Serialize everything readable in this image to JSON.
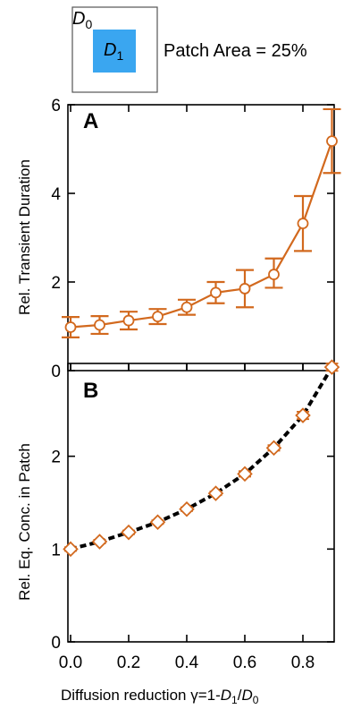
{
  "inset": {
    "outer_label_main": "D",
    "outer_label_sub": "0",
    "inner_label_main": "D",
    "inner_label_sub": "1",
    "caption": "Patch Area = 25%",
    "patch_color": "#3aa6f0"
  },
  "x_axis": {
    "tick_labels": [
      "0.0",
      "0.2",
      "0.4",
      "0.6",
      "0.8"
    ],
    "title_prefix": "Diffusion reduction γ=1-",
    "title_num_main": "D",
    "title_num_sub": "1",
    "title_slash": "/",
    "title_den_main": "D",
    "title_den_sub": "0"
  },
  "colors": {
    "series_A": "#d2691e",
    "series_B_line": "#000000",
    "series_B_marker": "#d2691e"
  },
  "chart_data": [
    {
      "type": "line",
      "panel_label": "A",
      "ylabel": "Rel. Transient Duration",
      "xlim": [
        0.0,
        0.95
      ],
      "ylim": [
        0,
        6
      ],
      "ytick_labels": [
        "0",
        "2",
        "4",
        "6"
      ],
      "ytick_values": [
        0,
        2,
        4,
        6
      ],
      "series": [
        {
          "marker": "circle",
          "line": "solid",
          "x": [
            0.0,
            0.1,
            0.2,
            0.3,
            0.4,
            0.5,
            0.6,
            0.7,
            0.8,
            0.9
          ],
          "y": [
            0.98,
            1.03,
            1.13,
            1.22,
            1.43,
            1.76,
            1.85,
            2.17,
            3.32,
            5.18
          ],
          "err_low": [
            0.23,
            0.2,
            0.2,
            0.17,
            0.17,
            0.24,
            0.42,
            0.3,
            0.62,
            0.72
          ],
          "err_high": [
            0.23,
            0.2,
            0.2,
            0.17,
            0.17,
            0.24,
            0.42,
            0.36,
            0.62,
            0.72
          ]
        }
      ]
    },
    {
      "type": "line",
      "panel_label": "B",
      "ylabel": "Rel. Eq. Conc. in Patch",
      "xlim": [
        0.0,
        0.95
      ],
      "ylim": [
        0,
        3.0
      ],
      "ytick_labels": [
        "0",
        "1",
        "2"
      ],
      "ytick_values": [
        0,
        1,
        2
      ],
      "series": [
        {
          "marker": "diamond",
          "line": "dashed",
          "x": [
            0.0,
            0.1,
            0.2,
            0.3,
            0.4,
            0.5,
            0.6,
            0.7,
            0.8,
            0.9
          ],
          "y": [
            1.0,
            1.08,
            1.18,
            1.29,
            1.43,
            1.6,
            1.81,
            2.09,
            2.44,
            2.96
          ],
          "err": [
            0.02,
            0.02,
            0.02,
            0.02,
            0.02,
            0.02,
            0.03,
            0.03,
            0.04,
            0.04
          ]
        }
      ]
    }
  ]
}
